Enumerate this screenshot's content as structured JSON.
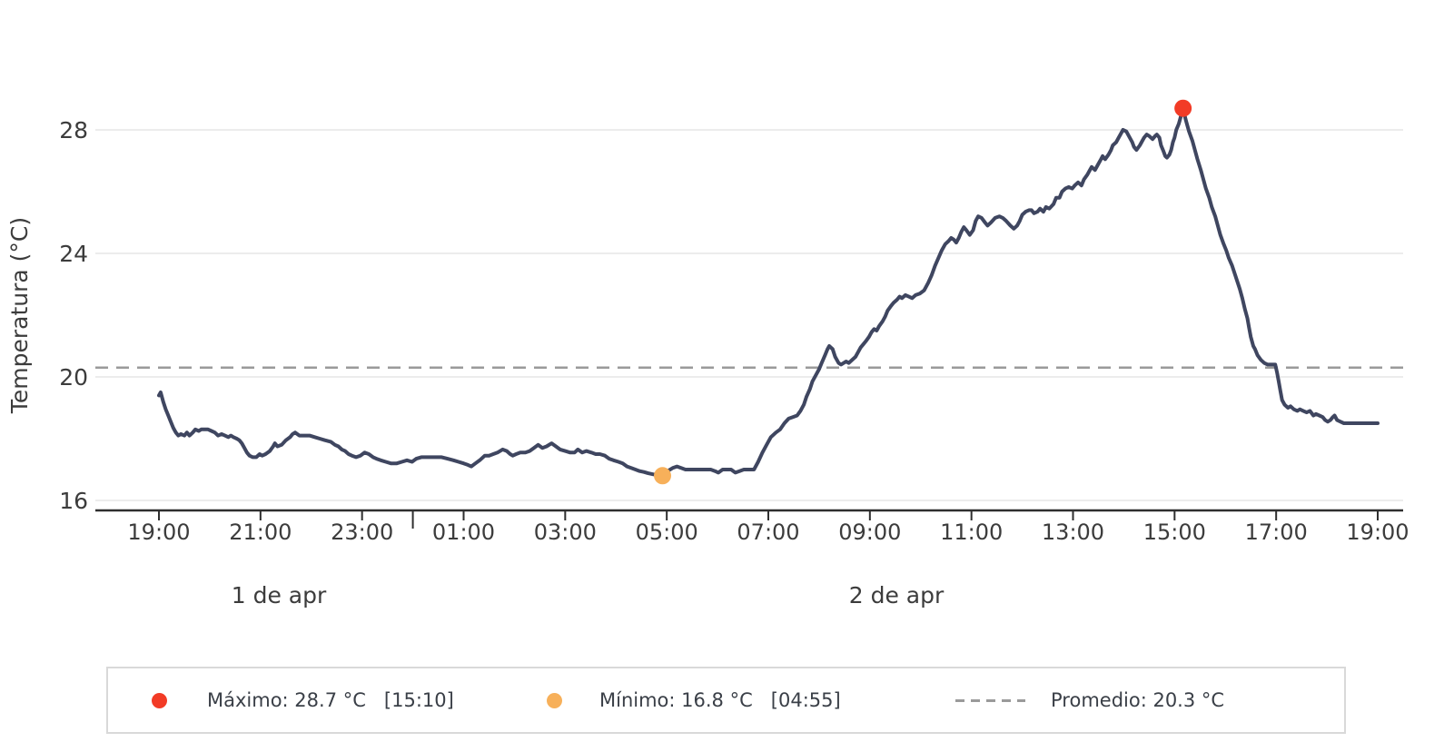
{
  "y_axis": {
    "label": "Temperatura (°C)",
    "tick_labels": [
      "28",
      "24",
      "20",
      "16"
    ],
    "tick_values": [
      28,
      24,
      20,
      16
    ]
  },
  "x_axis": {
    "tick_labels": [
      "19:00",
      "21:00",
      "23:00",
      "01:00",
      "03:00",
      "05:00",
      "07:00",
      "09:00",
      "11:00",
      "13:00",
      "15:00",
      "17:00",
      "19:00"
    ],
    "tick_hours_from_start": [
      0,
      2,
      4,
      6,
      8,
      10,
      12,
      14,
      16,
      18,
      20,
      22,
      24
    ],
    "midnight_hours_from_start": 5,
    "day_labels": [
      {
        "text": "1 de apr"
      },
      {
        "text": "2 de apr"
      }
    ]
  },
  "legend": {
    "max_label": "Máximo: 28.7 °C   [15:10]",
    "min_label": "Mínimo: 16.8 °C   [04:55]",
    "avg_label": "Promedio: 20.3 °C"
  },
  "colors": {
    "line": "#3f4660",
    "max_marker": "#f23b26",
    "min_marker": "#f7b05a",
    "average_line": "#9a9a9a",
    "gridline": "#ececec",
    "axis": "#2f2f2f",
    "tick_text": "#3c3c3c",
    "legend_text": "#3a3f47"
  },
  "chart_data": {
    "type": "line",
    "title": "",
    "ylabel": "Temperatura (°C)",
    "ylim": [
      16,
      28
    ],
    "y_ticks": [
      16,
      20,
      24,
      28
    ],
    "x_start": "19:00 1 de apr",
    "x_end": "19:00 2 de apr",
    "grid": "horizontal",
    "legend_position": "bottom",
    "average": {
      "value": 20.3,
      "label": "Promedio: 20.3 °C"
    },
    "max": {
      "value": 28.7,
      "time": "15:10",
      "minutes_from_start": 1210
    },
    "min": {
      "value": 16.8,
      "time": "04:55",
      "minutes_from_start": 595
    },
    "points_format": "[minutes_since_19:00_day1, temp_C]",
    "points": [
      [
        0,
        19.4
      ],
      [
        2,
        19.5
      ],
      [
        5,
        19.2
      ],
      [
        8,
        18.95
      ],
      [
        11,
        18.75
      ],
      [
        14,
        18.55
      ],
      [
        17,
        18.35
      ],
      [
        20,
        18.2
      ],
      [
        23,
        18.1
      ],
      [
        26,
        18.15
      ],
      [
        30,
        18.1
      ],
      [
        33,
        18.2
      ],
      [
        36,
        18.1
      ],
      [
        40,
        18.2
      ],
      [
        43,
        18.3
      ],
      [
        47,
        18.25
      ],
      [
        50,
        18.3
      ],
      [
        55,
        18.3
      ],
      [
        58,
        18.3
      ],
      [
        62,
        18.25
      ],
      [
        66,
        18.2
      ],
      [
        70,
        18.1
      ],
      [
        74,
        18.15
      ],
      [
        78,
        18.1
      ],
      [
        82,
        18.05
      ],
      [
        85,
        18.1
      ],
      [
        88,
        18.05
      ],
      [
        92,
        18.0
      ],
      [
        95,
        17.95
      ],
      [
        98,
        17.85
      ],
      [
        101,
        17.7
      ],
      [
        104,
        17.55
      ],
      [
        107,
        17.45
      ],
      [
        111,
        17.4
      ],
      [
        115,
        17.4
      ],
      [
        119,
        17.5
      ],
      [
        122,
        17.45
      ],
      [
        126,
        17.5
      ],
      [
        131,
        17.6
      ],
      [
        135,
        17.75
      ],
      [
        137,
        17.85
      ],
      [
        140,
        17.75
      ],
      [
        145,
        17.8
      ],
      [
        150,
        17.95
      ],
      [
        155,
        18.05
      ],
      [
        158,
        18.15
      ],
      [
        161,
        18.2
      ],
      [
        166,
        18.1
      ],
      [
        172,
        18.1
      ],
      [
        178,
        18.1
      ],
      [
        184,
        18.05
      ],
      [
        190,
        18.0
      ],
      [
        196,
        17.95
      ],
      [
        203,
        17.9
      ],
      [
        208,
        17.8
      ],
      [
        212,
        17.75
      ],
      [
        216,
        17.65
      ],
      [
        220,
        17.6
      ],
      [
        224,
        17.5
      ],
      [
        228,
        17.45
      ],
      [
        233,
        17.4
      ],
      [
        238,
        17.45
      ],
      [
        243,
        17.55
      ],
      [
        248,
        17.5
      ],
      [
        253,
        17.4
      ],
      [
        257,
        17.35
      ],
      [
        262,
        17.3
      ],
      [
        268,
        17.25
      ],
      [
        274,
        17.2
      ],
      [
        281,
        17.2
      ],
      [
        287,
        17.25
      ],
      [
        293,
        17.3
      ],
      [
        299,
        17.25
      ],
      [
        304,
        17.35
      ],
      [
        310,
        17.4
      ],
      [
        318,
        17.4
      ],
      [
        326,
        17.4
      ],
      [
        334,
        17.4
      ],
      [
        341,
        17.35
      ],
      [
        348,
        17.3
      ],
      [
        354,
        17.25
      ],
      [
        360,
        17.2
      ],
      [
        365,
        17.15
      ],
      [
        369,
        17.1
      ],
      [
        374,
        17.2
      ],
      [
        379,
        17.3
      ],
      [
        385,
        17.45
      ],
      [
        390,
        17.45
      ],
      [
        395,
        17.5
      ],
      [
        400,
        17.55
      ],
      [
        406,
        17.65
      ],
      [
        411,
        17.6
      ],
      [
        415,
        17.5
      ],
      [
        418,
        17.45
      ],
      [
        422,
        17.5
      ],
      [
        427,
        17.55
      ],
      [
        433,
        17.55
      ],
      [
        438,
        17.6
      ],
      [
        443,
        17.7
      ],
      [
        448,
        17.8
      ],
      [
        453,
        17.7
      ],
      [
        458,
        17.75
      ],
      [
        464,
        17.85
      ],
      [
        469,
        17.75
      ],
      [
        474,
        17.65
      ],
      [
        480,
        17.6
      ],
      [
        486,
        17.55
      ],
      [
        491,
        17.55
      ],
      [
        495,
        17.65
      ],
      [
        500,
        17.55
      ],
      [
        505,
        17.6
      ],
      [
        511,
        17.55
      ],
      [
        516,
        17.5
      ],
      [
        521,
        17.5
      ],
      [
        527,
        17.45
      ],
      [
        532,
        17.35
      ],
      [
        537,
        17.3
      ],
      [
        543,
        17.25
      ],
      [
        548,
        17.2
      ],
      [
        553,
        17.1
      ],
      [
        558,
        17.05
      ],
      [
        563,
        17.0
      ],
      [
        568,
        16.95
      ],
      [
        573,
        16.92
      ],
      [
        578,
        16.88
      ],
      [
        583,
        16.85
      ],
      [
        588,
        16.82
      ],
      [
        595,
        16.8
      ],
      [
        601,
        16.95
      ],
      [
        607,
        17.05
      ],
      [
        612,
        17.1
      ],
      [
        617,
        17.05
      ],
      [
        622,
        17.0
      ],
      [
        628,
        17.0
      ],
      [
        634,
        17.0
      ],
      [
        640,
        17.0
      ],
      [
        646,
        17.0
      ],
      [
        652,
        17.0
      ],
      [
        657,
        16.95
      ],
      [
        661,
        16.9
      ],
      [
        666,
        17.0
      ],
      [
        671,
        17.0
      ],
      [
        676,
        17.0
      ],
      [
        681,
        16.9
      ],
      [
        686,
        16.95
      ],
      [
        691,
        17.0
      ],
      [
        697,
        17.0
      ],
      [
        703,
        17.0
      ],
      [
        708,
        17.25
      ],
      [
        713,
        17.55
      ],
      [
        718,
        17.8
      ],
      [
        723,
        18.05
      ],
      [
        729,
        18.2
      ],
      [
        734,
        18.3
      ],
      [
        739,
        18.5
      ],
      [
        744,
        18.65
      ],
      [
        749,
        18.7
      ],
      [
        754,
        18.75
      ],
      [
        758,
        18.9
      ],
      [
        762,
        19.1
      ],
      [
        765,
        19.35
      ],
      [
        769,
        19.6
      ],
      [
        772,
        19.85
      ],
      [
        776,
        20.05
      ],
      [
        780,
        20.25
      ],
      [
        783,
        20.45
      ],
      [
        787,
        20.7
      ],
      [
        790,
        20.9
      ],
      [
        792,
        21.0
      ],
      [
        796,
        20.9
      ],
      [
        799,
        20.65
      ],
      [
        803,
        20.45
      ],
      [
        806,
        20.4
      ],
      [
        809,
        20.45
      ],
      [
        812,
        20.5
      ],
      [
        815,
        20.45
      ],
      [
        819,
        20.55
      ],
      [
        823,
        20.65
      ],
      [
        826,
        20.8
      ],
      [
        829,
        20.95
      ],
      [
        832,
        21.05
      ],
      [
        835,
        21.15
      ],
      [
        839,
        21.3
      ],
      [
        842,
        21.45
      ],
      [
        845,
        21.55
      ],
      [
        848,
        21.5
      ],
      [
        851,
        21.65
      ],
      [
        855,
        21.8
      ],
      [
        858,
        21.95
      ],
      [
        861,
        22.15
      ],
      [
        865,
        22.3
      ],
      [
        868,
        22.4
      ],
      [
        872,
        22.5
      ],
      [
        875,
        22.6
      ],
      [
        878,
        22.55
      ],
      [
        882,
        22.65
      ],
      [
        886,
        22.6
      ],
      [
        890,
        22.55
      ],
      [
        894,
        22.65
      ],
      [
        899,
        22.7
      ],
      [
        904,
        22.8
      ],
      [
        909,
        23.05
      ],
      [
        913,
        23.3
      ],
      [
        917,
        23.6
      ],
      [
        921,
        23.85
      ],
      [
        925,
        24.1
      ],
      [
        929,
        24.3
      ],
      [
        933,
        24.4
      ],
      [
        936,
        24.5
      ],
      [
        939,
        24.45
      ],
      [
        942,
        24.35
      ],
      [
        945,
        24.5
      ],
      [
        948,
        24.7
      ],
      [
        951,
        24.85
      ],
      [
        954,
        24.75
      ],
      [
        958,
        24.6
      ],
      [
        962,
        24.75
      ],
      [
        965,
        25.05
      ],
      [
        968,
        25.2
      ],
      [
        972,
        25.15
      ],
      [
        976,
        25.0
      ],
      [
        979,
        24.9
      ],
      [
        983,
        25.0
      ],
      [
        988,
        25.15
      ],
      [
        993,
        25.2
      ],
      [
        997,
        25.15
      ],
      [
        1001,
        25.05
      ],
      [
        1006,
        24.9
      ],
      [
        1010,
        24.8
      ],
      [
        1014,
        24.9
      ],
      [
        1017,
        25.05
      ],
      [
        1020,
        25.25
      ],
      [
        1024,
        25.35
      ],
      [
        1028,
        25.4
      ],
      [
        1031,
        25.4
      ],
      [
        1034,
        25.3
      ],
      [
        1038,
        25.35
      ],
      [
        1041,
        25.45
      ],
      [
        1045,
        25.35
      ],
      [
        1048,
        25.5
      ],
      [
        1052,
        25.45
      ],
      [
        1057,
        25.6
      ],
      [
        1060,
        25.8
      ],
      [
        1064,
        25.8
      ],
      [
        1067,
        26.0
      ],
      [
        1071,
        26.1
      ],
      [
        1075,
        26.15
      ],
      [
        1079,
        26.1
      ],
      [
        1082,
        26.2
      ],
      [
        1086,
        26.3
      ],
      [
        1090,
        26.2
      ],
      [
        1093,
        26.4
      ],
      [
        1097,
        26.55
      ],
      [
        1100,
        26.7
      ],
      [
        1102,
        26.8
      ],
      [
        1106,
        26.7
      ],
      [
        1109,
        26.85
      ],
      [
        1113,
        27.05
      ],
      [
        1115,
        27.15
      ],
      [
        1118,
        27.05
      ],
      [
        1122,
        27.2
      ],
      [
        1125,
        27.35
      ],
      [
        1127,
        27.5
      ],
      [
        1131,
        27.6
      ],
      [
        1134,
        27.75
      ],
      [
        1136,
        27.85
      ],
      [
        1139,
        28.0
      ],
      [
        1143,
        27.95
      ],
      [
        1146,
        27.8
      ],
      [
        1150,
        27.6
      ],
      [
        1152,
        27.45
      ],
      [
        1155,
        27.35
      ],
      [
        1159,
        27.5
      ],
      [
        1162,
        27.65
      ],
      [
        1164,
        27.75
      ],
      [
        1167,
        27.85
      ],
      [
        1170,
        27.8
      ],
      [
        1174,
        27.7
      ],
      [
        1177,
        27.8
      ],
      [
        1179,
        27.85
      ],
      [
        1182,
        27.75
      ],
      [
        1184,
        27.5
      ],
      [
        1187,
        27.3
      ],
      [
        1189,
        27.15
      ],
      [
        1191,
        27.1
      ],
      [
        1194,
        27.2
      ],
      [
        1196,
        27.35
      ],
      [
        1198,
        27.6
      ],
      [
        1200,
        27.75
      ],
      [
        1202,
        28.0
      ],
      [
        1205,
        28.2
      ],
      [
        1207,
        28.4
      ],
      [
        1210,
        28.7
      ],
      [
        1213,
        28.35
      ],
      [
        1215,
        28.15
      ],
      [
        1217,
        27.95
      ],
      [
        1221,
        27.65
      ],
      [
        1224,
        27.35
      ],
      [
        1227,
        27.05
      ],
      [
        1231,
        26.7
      ],
      [
        1234,
        26.4
      ],
      [
        1237,
        26.1
      ],
      [
        1241,
        25.8
      ],
      [
        1244,
        25.5
      ],
      [
        1248,
        25.2
      ],
      [
        1251,
        24.9
      ],
      [
        1254,
        24.6
      ],
      [
        1258,
        24.3
      ],
      [
        1261,
        24.1
      ],
      [
        1264,
        23.85
      ],
      [
        1268,
        23.6
      ],
      [
        1271,
        23.35
      ],
      [
        1274,
        23.1
      ],
      [
        1277,
        22.85
      ],
      [
        1280,
        22.55
      ],
      [
        1283,
        22.2
      ],
      [
        1286,
        21.9
      ],
      [
        1288,
        21.6
      ],
      [
        1290,
        21.3
      ],
      [
        1293,
        21.0
      ],
      [
        1295,
        20.9
      ],
      [
        1298,
        20.7
      ],
      [
        1302,
        20.55
      ],
      [
        1306,
        20.45
      ],
      [
        1310,
        20.4
      ],
      [
        1315,
        20.4
      ],
      [
        1319,
        20.4
      ],
      [
        1321,
        20.15
      ],
      [
        1323,
        19.85
      ],
      [
        1325,
        19.55
      ],
      [
        1327,
        19.25
      ],
      [
        1330,
        19.1
      ],
      [
        1334,
        19.0
      ],
      [
        1337,
        19.05
      ],
      [
        1341,
        18.95
      ],
      [
        1345,
        18.9
      ],
      [
        1348,
        18.95
      ],
      [
        1352,
        18.9
      ],
      [
        1356,
        18.85
      ],
      [
        1360,
        18.9
      ],
      [
        1364,
        18.75
      ],
      [
        1367,
        18.8
      ],
      [
        1371,
        18.75
      ],
      [
        1375,
        18.7
      ],
      [
        1378,
        18.6
      ],
      [
        1381,
        18.55
      ],
      [
        1384,
        18.6
      ],
      [
        1387,
        18.7
      ],
      [
        1389,
        18.75
      ],
      [
        1392,
        18.6
      ],
      [
        1396,
        18.55
      ],
      [
        1400,
        18.5
      ],
      [
        1408,
        18.5
      ],
      [
        1416,
        18.5
      ],
      [
        1424,
        18.5
      ],
      [
        1432,
        18.5
      ],
      [
        1440,
        18.5
      ]
    ]
  }
}
